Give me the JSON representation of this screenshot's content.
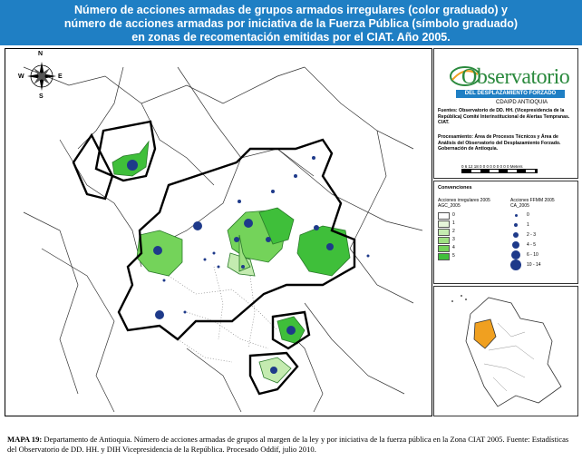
{
  "title": {
    "line1": "Número de acciones armadas de grupos armados irregulares (color graduado) y",
    "line2": "número de acciones armadas por iniciativa de la Fuerza Pública (símbolo graduado)",
    "line3": "en zonas de recomentación emitidas por el CIAT. Año 2005."
  },
  "compass": {
    "n": "N",
    "w": "W",
    "e": "E",
    "s": "S"
  },
  "logo": {
    "word": "Observatorio",
    "band": "DEL DESPLAZAMIENTO FORZADO",
    "sub": "CDAIPD ANTIOQUIA",
    "fuentes": "Fuentes: Observatorio de DD. HH. (Vicepresidencia de la República) Comité Interinstitucional de Alertas Tempranas. CIAT.",
    "procesamiento": "Procesamiento: Área de Procesos Técnicos y Área de Análisis del Observatorio del Desplazamiento Forzado. Gobernación de Antioquia.",
    "scale_text": "0 6 12 18 0 0 0 0 0 0 0 0 0 Meters"
  },
  "legend": {
    "title": "Convenciones",
    "col1_title": "Acciones irregulares 2005",
    "col1_field": "AGC_2005",
    "col2_title": "Acciones FFMM 2005",
    "col2_field": "CA_2005",
    "col1_classes": [
      {
        "label": "0",
        "color": "#ffffff"
      },
      {
        "label": "1",
        "color": "#e6f5d9"
      },
      {
        "label": "2",
        "color": "#c4ebb0"
      },
      {
        "label": "3",
        "color": "#9ee082"
      },
      {
        "label": "4",
        "color": "#74d35a"
      },
      {
        "label": "5",
        "color": "#3fbf3a"
      }
    ],
    "col2_classes": [
      {
        "label": "0"
      },
      {
        "label": "1"
      },
      {
        "label": "2 - 3"
      },
      {
        "label": "4 - 5"
      },
      {
        "label": "6 - 10"
      },
      {
        "label": "10 - 14"
      }
    ]
  },
  "caption": {
    "label": "MAPA 19:",
    "text": " Departamento de Antioquia. Número de acciones armadas de grupos al margen de la ley y por iniciativa de la fuerza pública en la Zona CIAT 2005. Fuente: Estadísticas del Observatorio de DD. HH. y DIH Vicepresidencia de la República. Procesado Oddif, julio 2010."
  },
  "colors": {
    "title_bg": "#1f7fc4",
    "green_light": "#c4ebb0",
    "green_mid": "#9ee082",
    "green_dark": "#3fbf3a",
    "dot": "#1e3a8a",
    "antioquia_inset": "#f0a020"
  }
}
